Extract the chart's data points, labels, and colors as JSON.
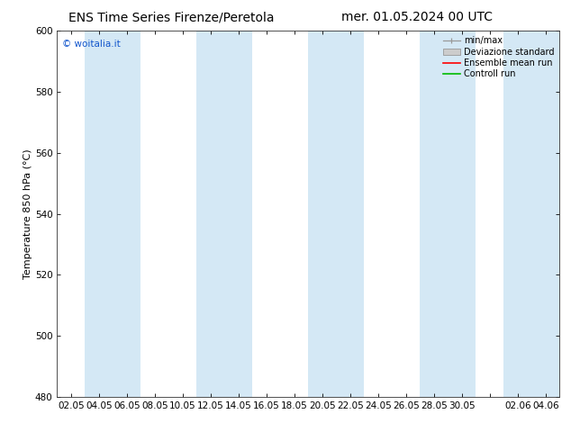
{
  "title_left": "ENS Time Series Firenze/Peretola",
  "title_right": "mer. 01.05.2024 00 UTC",
  "ylabel": "Temperature 850 hPa (°C)",
  "watermark": "© woitalia.it",
  "ylim": [
    480,
    600
  ],
  "yticks": [
    480,
    500,
    520,
    540,
    560,
    580,
    600
  ],
  "xtick_labels": [
    "02.05",
    "04.05",
    "06.05",
    "08.05",
    "10.05",
    "12.05",
    "14.05",
    "16.05",
    "18.05",
    "20.05",
    "22.05",
    "24.05",
    "26.05",
    "28.05",
    "30.05",
    "",
    "02.06",
    "04.06"
  ],
  "n_xticks": 18,
  "band_color": "#d4e8f5",
  "band_alpha": 1.0,
  "bg_color": "#ffffff",
  "legend_labels": [
    "min/max",
    "Deviazione standard",
    "Ensemble mean run",
    "Controll run"
  ],
  "legend_colors_handle": [
    "#999999",
    "#cccccc",
    "#ff0000",
    "#00bb00"
  ],
  "title_fontsize": 10,
  "ylabel_fontsize": 8,
  "tick_fontsize": 7.5,
  "watermark_color": "#1155cc",
  "band_indices": [
    1,
    2,
    5,
    6,
    9,
    10,
    13,
    14,
    16,
    17
  ]
}
